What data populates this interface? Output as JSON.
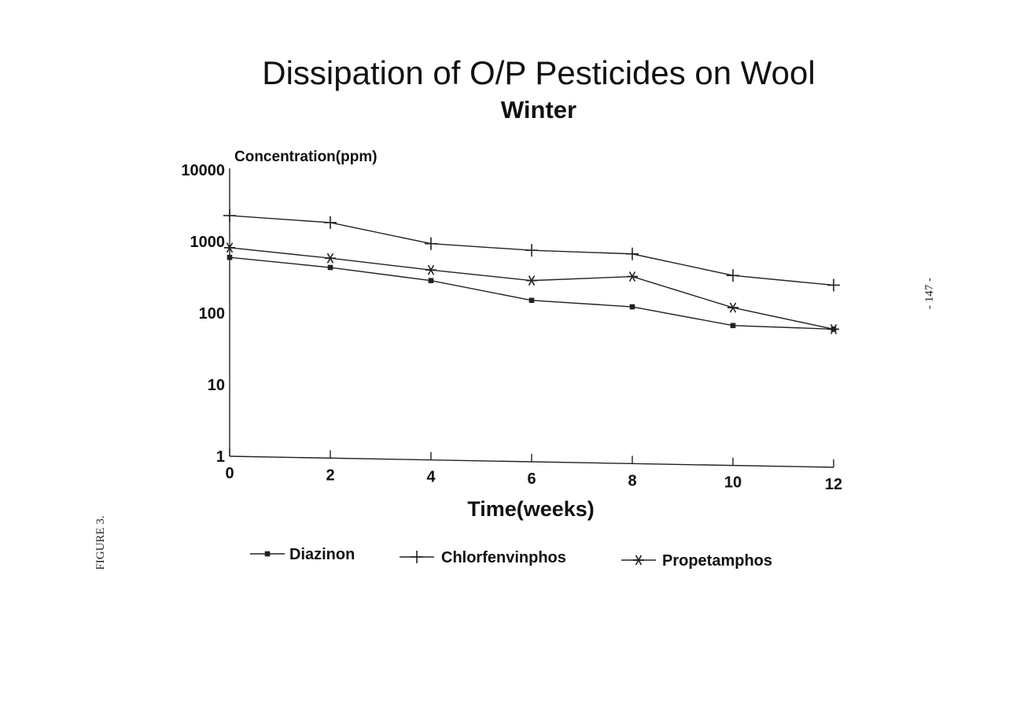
{
  "page": {
    "figure_caption": "FIGURE 3.",
    "page_number": "- 147 -"
  },
  "chart_data": {
    "type": "line",
    "title": "Dissipation of O/P Pesticides on Wool",
    "subtitle": "Winter",
    "xlabel": "Time(weeks)",
    "ylabel": "Concentration(ppm)",
    "y_scale": "log",
    "ylim": [
      1,
      10000
    ],
    "xlim": [
      0,
      12
    ],
    "x_ticks": [
      "0",
      "2",
      "4",
      "6",
      "8",
      "10",
      "12"
    ],
    "y_ticks": [
      "1",
      "10",
      "100",
      "1000",
      "10000"
    ],
    "grid": false,
    "legend_position": "bottom",
    "x": [
      0,
      2,
      4,
      6,
      8,
      10,
      12
    ],
    "series": [
      {
        "name": "Diazinon",
        "marker": "dot",
        "values": [
          600,
          460,
          320,
          180,
          155,
          90,
          85
        ]
      },
      {
        "name": "Chlorfenvinphos",
        "marker": "plus",
        "values": [
          2300,
          1950,
          1050,
          900,
          850,
          450,
          350
        ]
      },
      {
        "name": "Propetamphos",
        "marker": "asterisk",
        "values": [
          820,
          620,
          450,
          340,
          410,
          160,
          85
        ]
      }
    ]
  }
}
